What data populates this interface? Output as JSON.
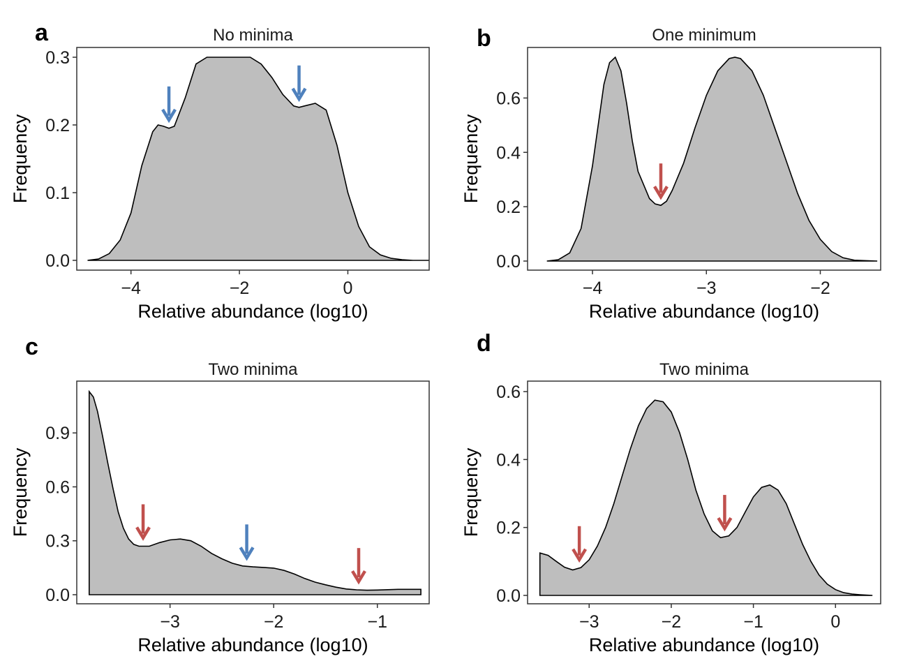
{
  "colors": {
    "fill": "#bebebe",
    "outline": "#000000",
    "blue_arrow": "#4f81bd",
    "red_arrow": "#c0504d"
  },
  "chart_data": [
    {
      "type": "area",
      "panel": "a",
      "title": "No minima",
      "xlabel": "Relative abundance (log10)",
      "ylabel": "Frequency",
      "xlim": [
        -5.0,
        1.5
      ],
      "ylim": [
        0.0,
        0.3
      ],
      "xticks": [
        -4,
        -2,
        0
      ],
      "yticks": [
        0.0,
        0.1,
        0.2,
        0.3
      ],
      "ytick_labels": [
        "0.0",
        "0.1",
        "0.2",
        "0.3"
      ],
      "x": [
        -4.8,
        -4.6,
        -4.4,
        -4.2,
        -4.0,
        -3.8,
        -3.6,
        -3.5,
        -3.4,
        -3.3,
        -3.2,
        -3.0,
        -2.8,
        -2.6,
        -2.4,
        -2.2,
        -2.0,
        -1.8,
        -1.6,
        -1.4,
        -1.2,
        -1.0,
        -0.9,
        -0.8,
        -0.6,
        -0.4,
        -0.2,
        0.0,
        0.2,
        0.4,
        0.6,
        0.8,
        1.0,
        1.2,
        1.5
      ],
      "y": [
        0.0,
        0.002,
        0.01,
        0.03,
        0.07,
        0.14,
        0.19,
        0.2,
        0.198,
        0.195,
        0.198,
        0.24,
        0.29,
        0.3,
        0.3,
        0.3,
        0.3,
        0.3,
        0.29,
        0.27,
        0.245,
        0.228,
        0.226,
        0.228,
        0.232,
        0.222,
        0.17,
        0.1,
        0.05,
        0.02,
        0.008,
        0.003,
        0.001,
        0.0,
        0.0
      ],
      "arrows": [
        {
          "x": -3.3,
          "color": "blue"
        },
        {
          "x": -0.9,
          "color": "blue"
        }
      ]
    },
    {
      "type": "area",
      "panel": "b",
      "title": "One minimum",
      "xlabel": "Relative abundance (log10)",
      "ylabel": "Frequency",
      "xlim": [
        -4.57,
        -1.47
      ],
      "ylim": [
        0.0,
        0.75
      ],
      "xticks": [
        -4,
        -3,
        -2
      ],
      "yticks": [
        0.0,
        0.2,
        0.4,
        0.6
      ],
      "ytick_labels": [
        "0.0",
        "0.2",
        "0.4",
        "0.6"
      ],
      "x": [
        -4.4,
        -4.3,
        -4.2,
        -4.1,
        -4.0,
        -3.95,
        -3.9,
        -3.85,
        -3.8,
        -3.75,
        -3.7,
        -3.65,
        -3.6,
        -3.5,
        -3.45,
        -3.4,
        -3.35,
        -3.3,
        -3.2,
        -3.1,
        -3.0,
        -2.9,
        -2.8,
        -2.75,
        -2.7,
        -2.6,
        -2.5,
        -2.4,
        -2.3,
        -2.2,
        -2.1,
        -2.0,
        -1.9,
        -1.8,
        -1.7,
        -1.5
      ],
      "y": [
        0.0,
        0.005,
        0.03,
        0.12,
        0.35,
        0.5,
        0.65,
        0.73,
        0.75,
        0.7,
        0.58,
        0.44,
        0.33,
        0.23,
        0.21,
        0.205,
        0.22,
        0.26,
        0.36,
        0.49,
        0.61,
        0.7,
        0.745,
        0.75,
        0.745,
        0.7,
        0.61,
        0.49,
        0.37,
        0.25,
        0.15,
        0.08,
        0.035,
        0.012,
        0.003,
        0.0
      ],
      "arrows": [
        {
          "x": -3.4,
          "color": "red"
        }
      ]
    },
    {
      "type": "area",
      "panel": "c",
      "title": "Two minima",
      "xlabel": "Relative abundance (log10)",
      "ylabel": "Frequency",
      "xlim": [
        -3.9,
        -0.5
      ],
      "ylim": [
        0.0,
        1.13
      ],
      "xticks": [
        -3,
        -2,
        -1
      ],
      "yticks": [
        0.0,
        0.3,
        0.6,
        0.9
      ],
      "ytick_labels": [
        "0.0",
        "0.3",
        "0.6",
        "0.9"
      ],
      "x": [
        -3.78,
        -3.74,
        -3.7,
        -3.65,
        -3.6,
        -3.55,
        -3.5,
        -3.45,
        -3.4,
        -3.35,
        -3.3,
        -3.2,
        -3.1,
        -3.0,
        -2.9,
        -2.8,
        -2.7,
        -2.6,
        -2.5,
        -2.4,
        -2.3,
        -2.2,
        -2.1,
        -2.0,
        -1.9,
        -1.8,
        -1.7,
        -1.6,
        -1.5,
        -1.4,
        -1.3,
        -1.2,
        -1.1,
        -1.0,
        -0.9,
        -0.8,
        -0.7,
        -0.58
      ],
      "y": [
        1.13,
        1.1,
        1.02,
        0.88,
        0.73,
        0.59,
        0.46,
        0.37,
        0.31,
        0.28,
        0.27,
        0.27,
        0.29,
        0.305,
        0.31,
        0.3,
        0.27,
        0.23,
        0.2,
        0.175,
        0.16,
        0.155,
        0.152,
        0.148,
        0.135,
        0.115,
        0.09,
        0.07,
        0.055,
        0.042,
        0.032,
        0.027,
        0.025,
        0.026,
        0.028,
        0.03,
        0.03,
        0.03
      ],
      "arrows": [
        {
          "x": -3.26,
          "color": "red"
        },
        {
          "x": -2.26,
          "color": "blue"
        },
        {
          "x": -1.18,
          "color": "red"
        }
      ]
    },
    {
      "type": "area",
      "panel": "d",
      "title": "Two minima",
      "xlabel": "Relative abundance (log10)",
      "ylabel": "Frequency",
      "xlim": [
        -3.75,
        0.55
      ],
      "ylim": [
        0.0,
        0.6
      ],
      "xticks": [
        -3,
        -2,
        -1,
        0
      ],
      "yticks": [
        0.0,
        0.2,
        0.4,
        0.6
      ],
      "ytick_labels": [
        "0.0",
        "0.2",
        "0.4",
        "0.6"
      ],
      "x": [
        -3.6,
        -3.5,
        -3.4,
        -3.3,
        -3.2,
        -3.1,
        -3.0,
        -2.9,
        -2.8,
        -2.7,
        -2.6,
        -2.5,
        -2.4,
        -2.3,
        -2.2,
        -2.1,
        -2.0,
        -1.9,
        -1.8,
        -1.7,
        -1.6,
        -1.5,
        -1.4,
        -1.3,
        -1.2,
        -1.1,
        -1.0,
        -0.9,
        -0.8,
        -0.7,
        -0.6,
        -0.5,
        -0.4,
        -0.3,
        -0.2,
        -0.1,
        0.0,
        0.1,
        0.2,
        0.3,
        0.45
      ],
      "y": [
        0.125,
        0.118,
        0.1,
        0.083,
        0.075,
        0.082,
        0.105,
        0.145,
        0.2,
        0.27,
        0.35,
        0.43,
        0.5,
        0.55,
        0.575,
        0.57,
        0.54,
        0.48,
        0.4,
        0.31,
        0.24,
        0.19,
        0.17,
        0.175,
        0.2,
        0.245,
        0.29,
        0.318,
        0.325,
        0.31,
        0.27,
        0.21,
        0.15,
        0.1,
        0.06,
        0.033,
        0.017,
        0.008,
        0.004,
        0.002,
        0.0
      ],
      "arrows": [
        {
          "x": -3.12,
          "color": "red"
        },
        {
          "x": -1.35,
          "color": "red"
        }
      ]
    }
  ]
}
